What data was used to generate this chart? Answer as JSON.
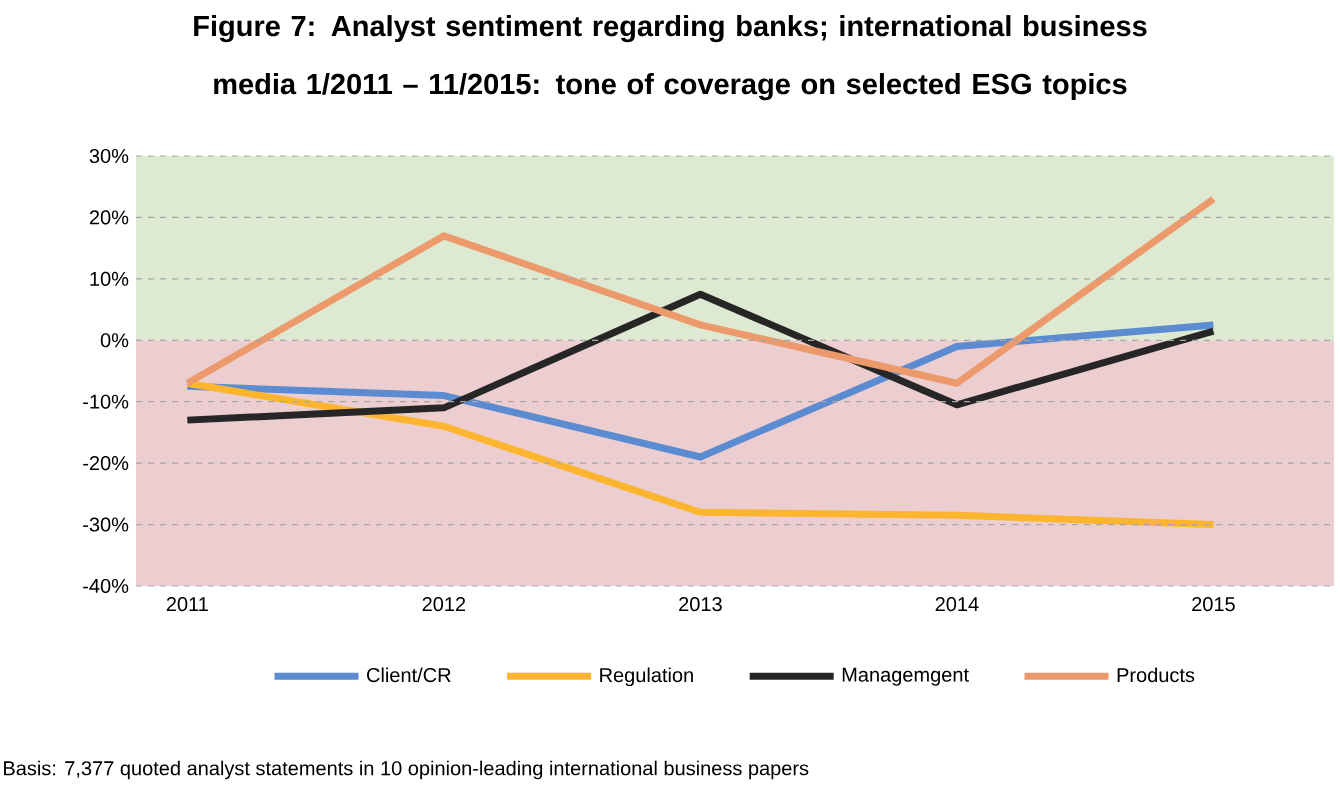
{
  "chart_data": {
    "type": "line",
    "title": "Figure 7: Analyst sentiment regarding banks; international business media 1/2011 – 11/2015: tone of coverage on selected ESG topics",
    "categories": [
      "2011",
      "2012",
      "2013",
      "2014",
      "2015"
    ],
    "series": [
      {
        "name": "Client/CR",
        "color": "#5b8bd0",
        "values": [
          -7.5,
          -9,
          -19,
          -1,
          2.5
        ]
      },
      {
        "name": "Regulation",
        "color": "#fdb52f",
        "values": [
          -7,
          -14,
          -28,
          -28.5,
          -30
        ]
      },
      {
        "name": "Managemgent",
        "color": "#262626",
        "values": [
          -13,
          -11,
          7.5,
          -10.5,
          1.5
        ]
      },
      {
        "name": "Products",
        "color": "#ec9a6c",
        "values": [
          -7,
          17,
          2.5,
          -7,
          23
        ]
      }
    ],
    "ylim": [
      -40,
      30
    ],
    "yticks": [
      {
        "value": -40,
        "label": "-40%"
      },
      {
        "value": -30,
        "label": "-30%"
      },
      {
        "value": -20,
        "label": "-20%"
      },
      {
        "value": -10,
        "label": "-10%"
      },
      {
        "value": 0,
        "label": "0%"
      },
      {
        "value": 10,
        "label": "10%"
      },
      {
        "value": 20,
        "label": "20%"
      },
      {
        "value": 30,
        "label": "30%"
      }
    ],
    "grid": "y",
    "legend": "bottom",
    "line_style": "solid",
    "bands": [
      {
        "axis": "y",
        "from": 0,
        "to": 30,
        "color": "#dde9d0"
      },
      {
        "axis": "y",
        "from": -40,
        "to": 0,
        "color": "#eccdd0"
      }
    ],
    "annotations": [
      "Basis: 7,377 quoted analyst statements in 10 opinion-leading international business papers"
    ]
  }
}
